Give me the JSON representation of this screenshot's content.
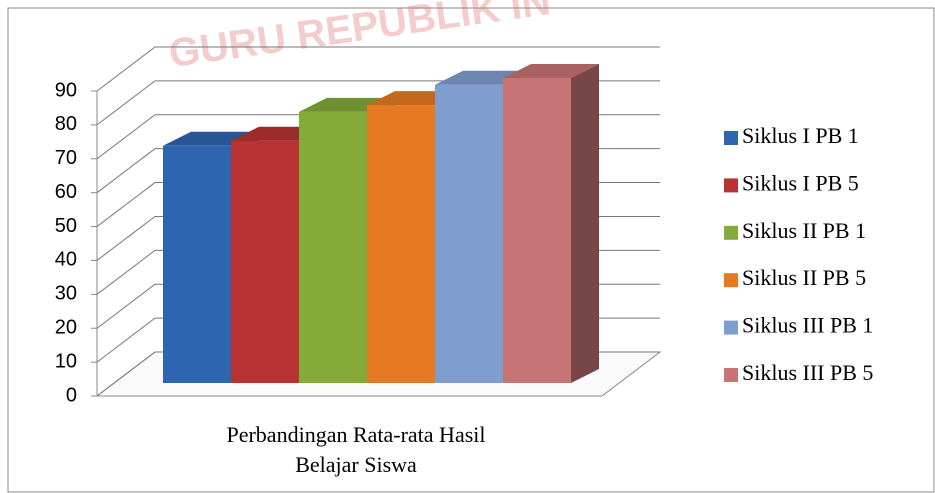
{
  "chart_data": {
    "type": "bar3d",
    "watermark": "GURU REPUBLIK IN",
    "categories": [
      "Perbandingan Rata-rata Hasil Belajar Siswa"
    ],
    "series": [
      {
        "name": "Siklus I PB 1",
        "color": "#2e64b0",
        "values": [
          70
        ]
      },
      {
        "name": "Siklus I PB 5",
        "color": "#b83232",
        "values": [
          71.5
        ]
      },
      {
        "name": "Siklus II PB 1",
        "color": "#84ab3a",
        "values": [
          80
        ]
      },
      {
        "name": "Siklus II PB 5",
        "color": "#e67a22",
        "values": [
          82
        ]
      },
      {
        "name": "Siklus III PB 1",
        "color": "#7f9ecf",
        "values": [
          88
        ]
      },
      {
        "name": "Siklus III PB 5",
        "color": "#c87474",
        "values": [
          90
        ]
      }
    ],
    "ylim": [
      0,
      90
    ],
    "yticks": [
      0,
      10,
      20,
      30,
      40,
      50,
      60,
      70,
      80,
      90
    ],
    "grid": true,
    "legend": "right"
  }
}
